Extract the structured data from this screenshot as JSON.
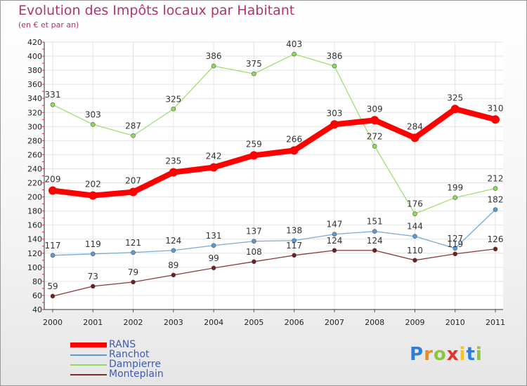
{
  "chart_data": {
    "type": "line",
    "title": "Evolution des Impôts locaux par Habitant",
    "subtitle": "(en € et par an)",
    "categories": [
      "2000",
      "2001",
      "2002",
      "2003",
      "2004",
      "2005",
      "2006",
      "2007",
      "2008",
      "2009",
      "2010",
      "2011"
    ],
    "yticks": [
      40,
      60,
      80,
      100,
      120,
      140,
      160,
      180,
      200,
      220,
      240,
      260,
      280,
      300,
      320,
      340,
      360,
      380,
      400,
      420
    ],
    "ylim": [
      40,
      420
    ],
    "series": [
      {
        "name": "RANS",
        "color": "#ff0000",
        "values": [
          209,
          202,
          207,
          235,
          242,
          259,
          266,
          303,
          309,
          284,
          325,
          310
        ]
      },
      {
        "name": "Ranchot",
        "color": "#5b9bd5",
        "values": [
          117,
          119,
          121,
          124,
          131,
          137,
          138,
          147,
          151,
          144,
          127,
          182
        ]
      },
      {
        "name": "Dampierre",
        "color": "#8fdc5a",
        "values": [
          331,
          303,
          287,
          325,
          386,
          375,
          403,
          386,
          272,
          176,
          199,
          212
        ]
      },
      {
        "name": "Monteplain",
        "color": "#7b2c2c",
        "values": [
          59,
          73,
          79,
          89,
          99,
          108,
          117,
          124,
          124,
          110,
          119,
          126
        ]
      }
    ]
  },
  "logo": {
    "letters": [
      "P",
      "r",
      "o",
      "x",
      "i",
      "t",
      "i"
    ],
    "colors": [
      "#2f7fd8",
      "#f08a1c",
      "#8cc63f",
      "#e8302a",
      "#f6c21b",
      "#2f7fd8",
      "#8cc63f"
    ]
  }
}
